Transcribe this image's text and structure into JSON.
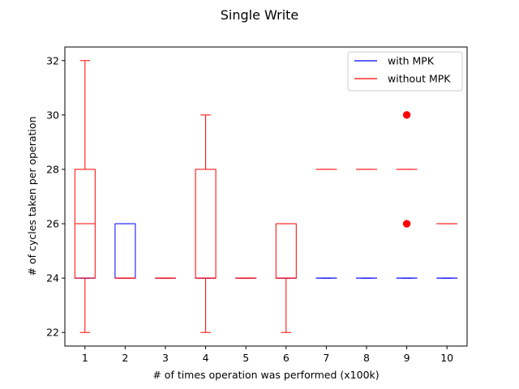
{
  "chart_data": {
    "type": "box",
    "title": "Single Write",
    "xlabel": "# of times operation was performed (x100k)",
    "ylabel": "# of cycles taken per operation",
    "categories": [
      1,
      2,
      3,
      4,
      5,
      6,
      7,
      8,
      9,
      10
    ],
    "ylim": [
      21.5,
      32.5
    ],
    "yticks": [
      22,
      24,
      26,
      28,
      30,
      32
    ],
    "grid": false,
    "legend_position": "upper-right",
    "series": [
      {
        "name": "with MPK",
        "color": "#0000ff",
        "boxes": [
          {
            "x": 1,
            "whislo": 24,
            "q1": 24,
            "med": 24,
            "q3": 24,
            "whishi": 24,
            "fliers": []
          },
          {
            "x": 2,
            "whislo": 24,
            "q1": 24,
            "med": 24,
            "q3": 26,
            "whishi": 26,
            "fliers": []
          },
          {
            "x": 3,
            "whislo": 24,
            "q1": 24,
            "med": 24,
            "q3": 24,
            "whishi": 24,
            "fliers": []
          },
          {
            "x": 4,
            "whislo": 24,
            "q1": 24,
            "med": 24,
            "q3": 24,
            "whishi": 24,
            "fliers": []
          },
          {
            "x": 5,
            "whislo": 24,
            "q1": 24,
            "med": 24,
            "q3": 24,
            "whishi": 24,
            "fliers": []
          },
          {
            "x": 6,
            "whislo": 24,
            "q1": 24,
            "med": 24,
            "q3": 24,
            "whishi": 24,
            "fliers": []
          },
          {
            "x": 7,
            "whislo": 24,
            "q1": 24,
            "med": 24,
            "q3": 24,
            "whishi": 24,
            "fliers": []
          },
          {
            "x": 8,
            "whislo": 24,
            "q1": 24,
            "med": 24,
            "q3": 24,
            "whishi": 24,
            "fliers": []
          },
          {
            "x": 9,
            "whislo": 24,
            "q1": 24,
            "med": 24,
            "q3": 24,
            "whishi": 24,
            "fliers": []
          },
          {
            "x": 10,
            "whislo": 24,
            "q1": 24,
            "med": 24,
            "q3": 24,
            "whishi": 24,
            "fliers": []
          }
        ]
      },
      {
        "name": "without MPK",
        "color": "#ff0000",
        "boxes": [
          {
            "x": 1,
            "whislo": 22,
            "q1": 24,
            "med": 26,
            "q3": 28,
            "whishi": 32,
            "fliers": []
          },
          {
            "x": 2,
            "whislo": 24,
            "q1": 24,
            "med": 24,
            "q3": 24,
            "whishi": 24,
            "fliers": []
          },
          {
            "x": 3,
            "whislo": 24,
            "q1": 24,
            "med": 24,
            "q3": 24,
            "whishi": 24,
            "fliers": []
          },
          {
            "x": 4,
            "whislo": 22,
            "q1": 24,
            "med": 24,
            "q3": 28,
            "whishi": 30,
            "fliers": []
          },
          {
            "x": 5,
            "whislo": 24,
            "q1": 24,
            "med": 24,
            "q3": 24,
            "whishi": 24,
            "fliers": []
          },
          {
            "x": 6,
            "whislo": 22,
            "q1": 24,
            "med": 24,
            "q3": 26,
            "whishi": 26,
            "fliers": []
          },
          {
            "x": 7,
            "whislo": 28,
            "q1": 28,
            "med": 28,
            "q3": 28,
            "whishi": 28,
            "fliers": []
          },
          {
            "x": 8,
            "whislo": 28,
            "q1": 28,
            "med": 28,
            "q3": 28,
            "whishi": 28,
            "fliers": []
          },
          {
            "x": 9,
            "whislo": 28,
            "q1": 28,
            "med": 28,
            "q3": 28,
            "whishi": 28,
            "fliers": [
              30,
              26
            ]
          },
          {
            "x": 10,
            "whislo": 26,
            "q1": 26,
            "med": 26,
            "q3": 26,
            "whishi": 26,
            "fliers": []
          }
        ]
      }
    ]
  }
}
